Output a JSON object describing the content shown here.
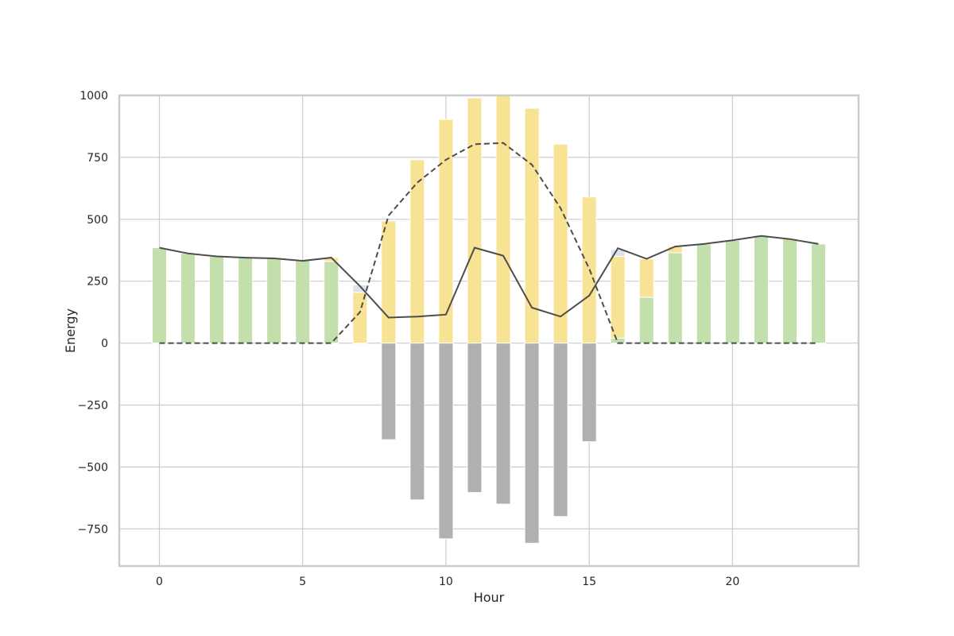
{
  "chart_data": {
    "type": "bar",
    "xlabel": "Hour",
    "ylabel": "Energy",
    "xlim": [
      -1.4,
      24.4
    ],
    "ylim": [
      -900,
      1000
    ],
    "xticks": [
      0,
      5,
      10,
      15,
      20
    ],
    "yticks": [
      -750,
      -500,
      -250,
      0,
      250,
      500,
      750,
      1000
    ],
    "grid": true,
    "x": [
      0,
      1,
      2,
      3,
      4,
      5,
      6,
      7,
      8,
      9,
      10,
      11,
      12,
      13,
      14,
      15,
      16,
      17,
      18,
      19,
      20,
      21,
      22,
      23
    ],
    "stacked_series": [
      {
        "color": "#c2dfac",
        "values": [
          385,
          362,
          350,
          345,
          342,
          332,
          330,
          0,
          0,
          0,
          0,
          0,
          0,
          0,
          0,
          0,
          20,
          185,
          365,
          400,
          415,
          435,
          420,
          400
        ]
      },
      {
        "color": "#f7e393",
        "values": [
          0,
          0,
          0,
          0,
          0,
          0,
          15,
          205,
          493,
          740,
          903,
          990,
          1000,
          948,
          803,
          590,
          330,
          155,
          25,
          0,
          0,
          0,
          0,
          0
        ]
      },
      {
        "color": "#dde3ee",
        "values": [
          0,
          0,
          0,
          0,
          0,
          0,
          0,
          30,
          0,
          0,
          0,
          0,
          0,
          0,
          0,
          0,
          28,
          0,
          0,
          0,
          0,
          0,
          0,
          0
        ]
      }
    ],
    "negative_series": {
      "color": "#b0b0b0",
      "values": [
        0,
        0,
        0,
        0,
        0,
        0,
        0,
        0,
        -390,
        -633,
        -790,
        -603,
        -650,
        -808,
        -700,
        -398,
        0,
        0,
        0,
        0,
        0,
        0,
        0,
        0
      ]
    },
    "lines": [
      {
        "style": "solid",
        "color": "#4d4d4d",
        "values": [
          385,
          362,
          350,
          345,
          342,
          332,
          345,
          230,
          103,
          107,
          115,
          385,
          353,
          143,
          107,
          192,
          383,
          340,
          390,
          400,
          415,
          433,
          420,
          400
        ]
      },
      {
        "style": "dashed",
        "color": "#4d4d4d",
        "values": [
          0,
          0,
          0,
          0,
          0,
          0,
          0,
          125,
          515,
          648,
          740,
          803,
          808,
          720,
          545,
          300,
          0,
          0,
          0,
          0,
          0,
          0,
          0,
          0
        ]
      }
    ]
  }
}
